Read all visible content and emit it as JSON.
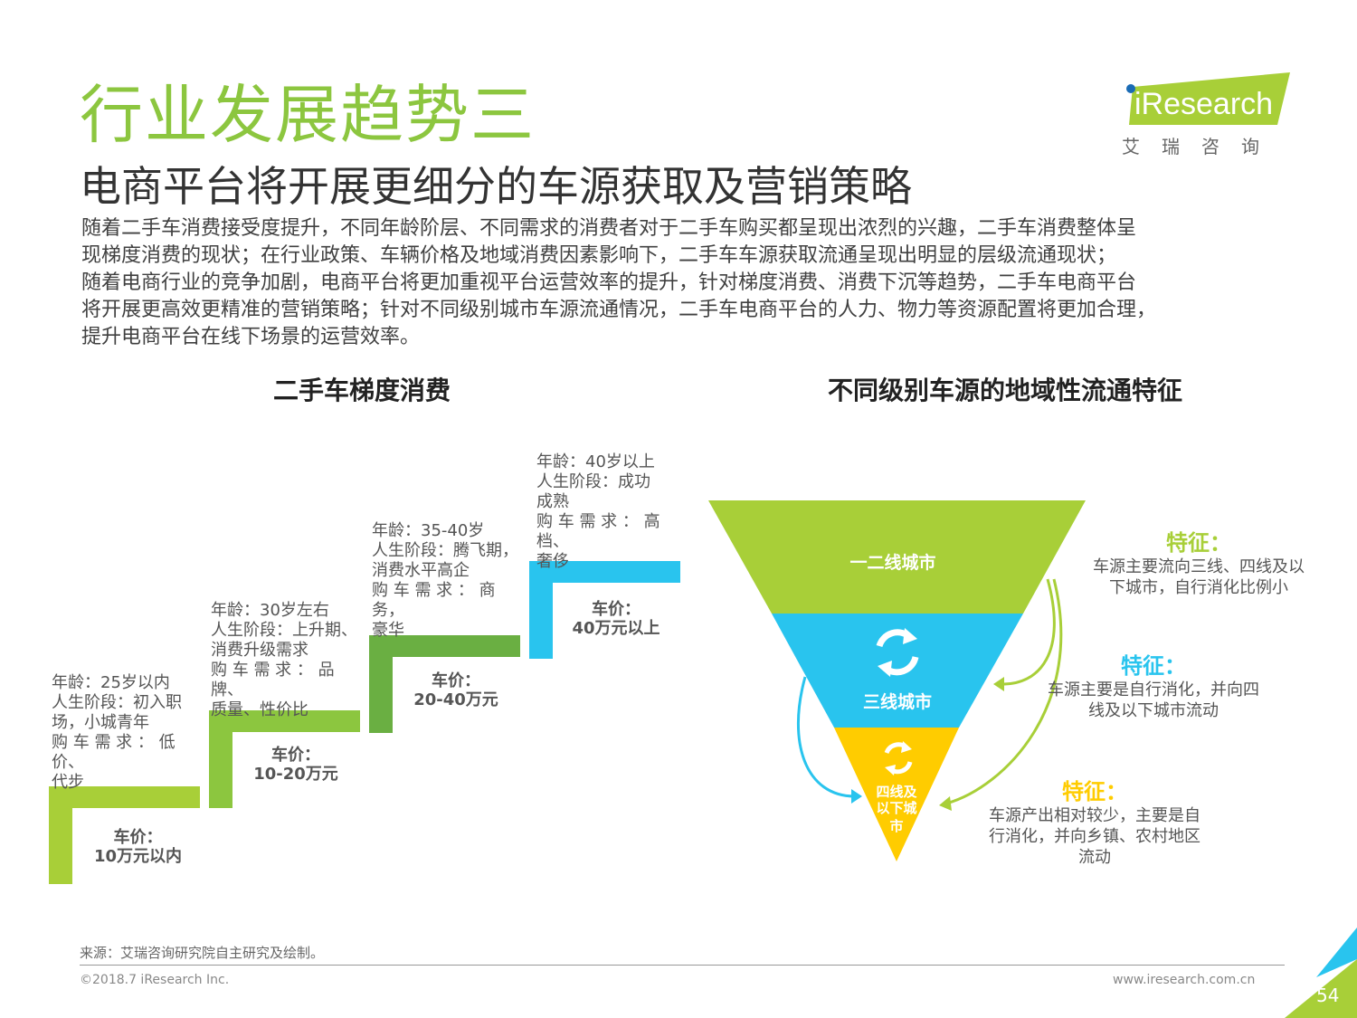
{
  "header": {
    "title": "行业发展趋势三",
    "subtitle": "电商平台将开展更细分的车源获取及营销策略",
    "intro_lines": [
      "随着二手车消费接受度提升，不同年龄阶层、不同需求的消费者对于二手车购买都呈现出浓烈的兴趣，二手车消费整体呈",
      "现梯度消费的现状；在行业政策、车辆价格及地域消费因素影响下，二手车车源获取流通呈现出明显的层级流通现状；",
      "随着电商行业的竞争加剧，电商平台将更加重视平台运营效率的提升，针对梯度消费、消费下沉等趋势，二手车电商平台",
      "将开展更高效更精准的营销策略；针对不同级别城市车源流通情况，二手车电商平台的人力、物力等资源配置将更加合理，",
      "提升电商平台在线下场景的运营效率。"
    ]
  },
  "logo": {
    "brand": "iResearch",
    "chinese": "艾瑞咨询"
  },
  "left_section": {
    "title": "二手车梯度消费",
    "steps": [
      {
        "color": "#a8cf38",
        "desc": [
          "年龄：25岁以内",
          "人生阶段：初入职",
          "场，小城青年",
          "购 车 需 求 ： 低价、",
          "代步"
        ],
        "price": [
          "车价：",
          "10万元以内"
        ]
      },
      {
        "color": "#8cc63f",
        "desc": [
          "年龄：30岁左右",
          "人生阶段：上升期、",
          "消费升级需求",
          "购 车 需 求 ： 品 牌、",
          "质量、性价比"
        ],
        "price": [
          "车价：",
          "10-20万元"
        ]
      },
      {
        "color": "#6aaf42",
        "desc": [
          "年龄：35-40岁",
          "人生阶段：腾飞期，",
          "消费水平高企",
          "购 车 需 求 ： 商 务，",
          "豪华"
        ],
        "price": [
          "车价：",
          "20-40万元"
        ]
      },
      {
        "color": "#29c4ee",
        "desc": [
          "年龄：40岁以上",
          "人生阶段：成功",
          "成熟",
          "购 车 需 求 ： 高档、",
          "奢侈"
        ],
        "price": [
          "车价：",
          "40万元以上"
        ]
      }
    ]
  },
  "right_section": {
    "title": "不同级别车源的地域性流通特征",
    "tiers": [
      {
        "label": "一二线城市",
        "color": "#a8cf38"
      },
      {
        "label": "三线城市",
        "color": "#29c4ee"
      },
      {
        "label": "四线及以下城市",
        "label_lines": [
          "四线及",
          "以下城",
          "市"
        ],
        "color": "#ffcc00"
      }
    ],
    "features": [
      {
        "title": "特征：",
        "title_color": "#a8cf38",
        "text": [
          "车源主要流向三线、四线及以",
          "下城市，自行消化比例小"
        ]
      },
      {
        "title": "特征：",
        "title_color": "#29c4ee",
        "text": [
          "车源主要是自行消化，并向四",
          "线及以下城市流动"
        ]
      },
      {
        "title": "特征：",
        "title_color": "#ffcc00",
        "text": [
          "车源产出相对较少，主要是自",
          "行消化，并向乡镇、农村地区",
          "流动"
        ]
      }
    ]
  },
  "footer": {
    "source": "来源：艾瑞咨询研究院自主研究及绘制。",
    "copyright": "©2018.7 iResearch Inc.",
    "website": "www.iresearch.com.cn",
    "page": "54"
  }
}
